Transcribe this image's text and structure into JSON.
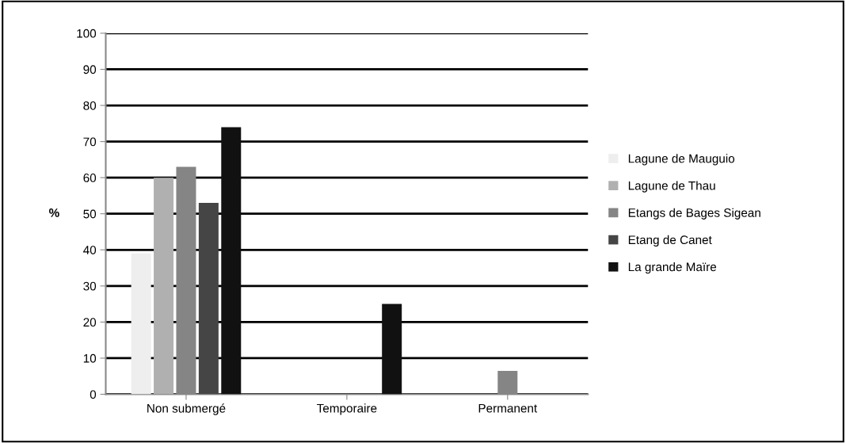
{
  "chart_data": {
    "type": "bar",
    "ylabel": "%",
    "categories": [
      "Non submergé",
      "Temporaire",
      "Permanent"
    ],
    "series": [
      {
        "name": "Lagune de Mauguio",
        "color": "#eeeeee",
        "values": [
          39,
          0,
          0
        ]
      },
      {
        "name": "Lagune de Thau",
        "color": "#b0b0b0",
        "values": [
          60,
          0,
          0
        ]
      },
      {
        "name": "Etangs de Bages Sigean",
        "color": "#858585",
        "values": [
          63,
          0,
          6.5
        ]
      },
      {
        "name": "Etang de Canet",
        "color": "#454545",
        "values": [
          53,
          0,
          0
        ]
      },
      {
        "name": "La grande Maïre",
        "color": "#111111",
        "values": [
          74,
          25,
          0
        ]
      }
    ],
    "ylim": [
      0,
      100
    ],
    "yticks": [
      0,
      10,
      20,
      30,
      40,
      50,
      60,
      70,
      80,
      90,
      100
    ],
    "grid": "y",
    "legend": "right"
  }
}
